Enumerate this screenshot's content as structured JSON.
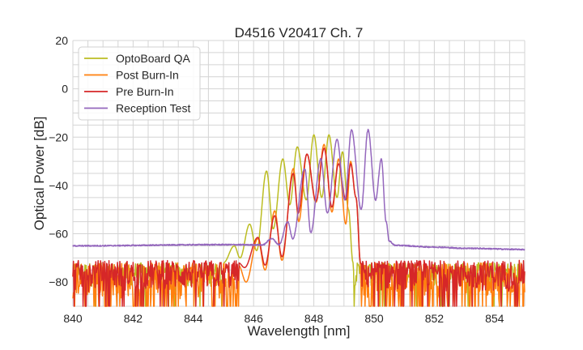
{
  "chart_data": {
    "type": "line",
    "title": "D4516 V20417 Ch. 7",
    "xlabel": "Wavelength [nm]",
    "ylabel": "Optical Power [dB]",
    "xlim": [
      840,
      855
    ],
    "ylim": [
      -90,
      20
    ],
    "xticks": [
      840,
      842,
      844,
      846,
      848,
      850,
      852,
      854
    ],
    "xtick_labels": [
      "840",
      "842",
      "844",
      "846",
      "848",
      "850",
      "852",
      "854"
    ],
    "yticks": [
      20,
      0,
      -20,
      -40,
      -60,
      -80
    ],
    "ytick_labels": [
      "20",
      "0",
      "−20",
      "−40",
      "−60",
      "−80"
    ],
    "grid": true,
    "minor_grid": {
      "x_step": 0.5,
      "y_step": 5
    },
    "legend_position": "top-left",
    "series": [
      {
        "name": "OptoBoard QA",
        "color": "#bcbd22",
        "noise_floor": [
          -82,
          -72
        ],
        "noise_dropout": -90,
        "noise_dropout_rate": 0.04,
        "points": [
          [
            845.0,
            -72
          ],
          [
            845.36,
            -65
          ],
          [
            845.55,
            -70
          ],
          [
            845.87,
            -56
          ],
          [
            846.1,
            -67
          ],
          [
            846.43,
            -34
          ],
          [
            846.65,
            -58
          ],
          [
            846.97,
            -29
          ],
          [
            847.2,
            -48
          ],
          [
            847.45,
            -24
          ],
          [
            847.75,
            -46
          ],
          [
            848.0,
            -19
          ],
          [
            848.26,
            -45
          ],
          [
            848.5,
            -19
          ],
          [
            848.77,
            -45
          ],
          [
            848.95,
            -26
          ],
          [
            849.15,
            -50
          ],
          [
            849.3,
            -72
          ]
        ]
      },
      {
        "name": "Post Burn-In",
        "color": "#ff7f0e",
        "noise_floor": [
          -87,
          -72
        ],
        "noise_dropout": -90,
        "noise_dropout_rate": 0.18,
        "points": [
          [
            845.5,
            -73
          ],
          [
            845.75,
            -80
          ],
          [
            846.14,
            -62
          ],
          [
            846.38,
            -75
          ],
          [
            846.7,
            -50.5
          ],
          [
            846.94,
            -71
          ],
          [
            847.32,
            -33
          ],
          [
            847.5,
            -55
          ],
          [
            847.77,
            -27
          ],
          [
            848.07,
            -47
          ],
          [
            848.34,
            -23
          ],
          [
            848.6,
            -51
          ],
          [
            848.82,
            -29
          ],
          [
            849.06,
            -56
          ],
          [
            849.22,
            -30
          ],
          [
            849.4,
            -45
          ],
          [
            849.55,
            -72
          ]
        ]
      },
      {
        "name": "Pre Burn-In",
        "color": "#d62728",
        "noise_floor": [
          -84,
          -71
        ],
        "noise_dropout": -90,
        "noise_dropout_rate": 0.08,
        "points": [
          [
            845.5,
            -72
          ],
          [
            845.7,
            -74
          ],
          [
            846.14,
            -61.5
          ],
          [
            846.38,
            -73
          ],
          [
            846.7,
            -52.5
          ],
          [
            846.94,
            -69.5
          ],
          [
            847.32,
            -35
          ],
          [
            847.48,
            -51.5
          ],
          [
            847.77,
            -27
          ],
          [
            848.07,
            -46.5
          ],
          [
            848.34,
            -24.6
          ],
          [
            848.6,
            -49
          ],
          [
            848.82,
            -31
          ],
          [
            849.06,
            -46
          ],
          [
            849.22,
            -31
          ],
          [
            849.4,
            -45
          ],
          [
            849.55,
            -72
          ]
        ]
      },
      {
        "name": "Reception Test",
        "color": "#9467bd",
        "noise_floor": null,
        "points": [
          [
            840,
            -65
          ],
          [
            845,
            -64.5
          ],
          [
            846.3,
            -64.6
          ],
          [
            846.6,
            -62
          ],
          [
            846.85,
            -64.5
          ],
          [
            847.13,
            -55
          ],
          [
            847.3,
            -62
          ],
          [
            847.7,
            -33
          ],
          [
            847.9,
            -59.5
          ],
          [
            848.23,
            -29
          ],
          [
            848.45,
            -51.5
          ],
          [
            848.77,
            -21
          ],
          [
            849.03,
            -46
          ],
          [
            849.25,
            -17
          ],
          [
            849.57,
            -50
          ],
          [
            849.8,
            -17
          ],
          [
            850.05,
            -46
          ],
          [
            850.24,
            -29
          ],
          [
            850.4,
            -55
          ],
          [
            850.5,
            -63
          ],
          [
            850.7,
            -64.8
          ],
          [
            852,
            -65.5
          ],
          [
            853,
            -66
          ],
          [
            855,
            -66.5
          ]
        ]
      }
    ]
  }
}
